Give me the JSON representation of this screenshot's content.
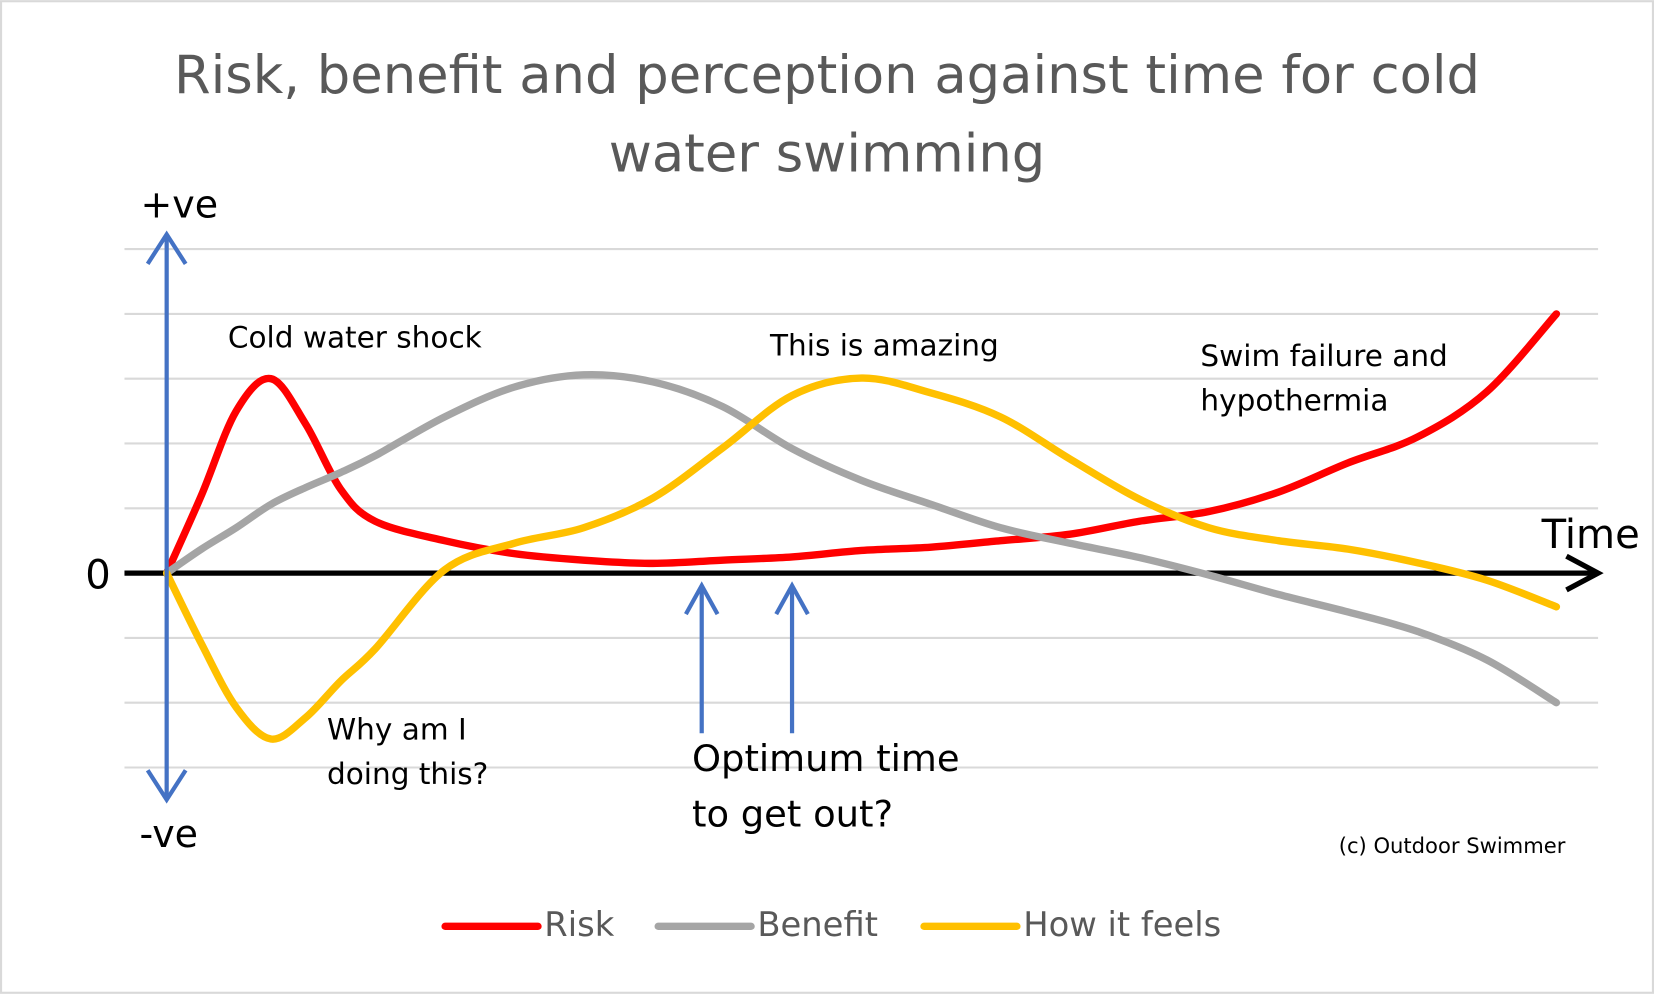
{
  "chart_data": {
    "type": "line",
    "title": "Risk, benefit and perception against time for cold water swimming",
    "x": [
      0,
      2.5,
      5,
      7.5,
      10,
      12.5,
      15,
      20,
      25,
      30,
      35,
      40,
      45,
      50,
      55,
      60,
      65,
      70,
      75,
      80,
      85,
      90,
      95,
      100
    ],
    "series": [
      {
        "name": "Risk",
        "color": "#ff0000",
        "values": [
          0,
          1.2,
          2.5,
          3.0,
          2.3,
          1.3,
          0.8,
          0.5,
          0.3,
          0.2,
          0.15,
          0.2,
          0.25,
          0.35,
          0.4,
          0.5,
          0.6,
          0.8,
          0.95,
          1.25,
          1.7,
          2.1,
          2.8,
          4.0
        ]
      },
      {
        "name": "Benefit",
        "color": "#a5a5a5",
        "values": [
          0,
          0.37,
          0.7,
          1.06,
          1.32,
          1.55,
          1.81,
          2.41,
          2.87,
          3.06,
          2.95,
          2.57,
          1.92,
          1.43,
          1.06,
          0.7,
          0.46,
          0.24,
          -0.03,
          -0.33,
          -0.6,
          -0.9,
          -1.34,
          -2.0
        ]
      },
      {
        "name": "How it feels",
        "color": "#ffc000",
        "values": [
          0,
          -1.09,
          -2.07,
          -2.56,
          -2.23,
          -1.67,
          -1.17,
          0.05,
          0.46,
          0.7,
          1.16,
          1.93,
          2.74,
          3.01,
          2.78,
          2.41,
          1.76,
          1.14,
          0.7,
          0.5,
          0.37,
          0.16,
          -0.11,
          -0.52
        ]
      }
    ],
    "xlim": [
      0,
      103
    ],
    "ylim": [
      -3.53,
      5.26
    ],
    "yticks": [
      0
    ],
    "ygrid": [
      -3,
      -2,
      -1,
      0,
      1,
      2,
      3,
      4,
      5
    ],
    "grid": true,
    "x_label": "Time",
    "y_top_label": "+ve",
    "y_bottom_label": "-ve",
    "axis_arrow_color": "#4472c4",
    "optimum_x": [
      38.5,
      45
    ],
    "annotations": [
      {
        "lines": [
          "Cold water shock"
        ]
      },
      {
        "lines": [
          "Why am I",
          "doing this?"
        ]
      },
      {
        "lines": [
          "This is amazing"
        ]
      },
      {
        "lines": [
          "Swim failure and",
          "hypothermia"
        ]
      },
      {
        "lines": [
          "Optimum time",
          "to get out?"
        ]
      }
    ],
    "credit": "(c) Outdoor Swimmer",
    "legend": "bottom"
  }
}
